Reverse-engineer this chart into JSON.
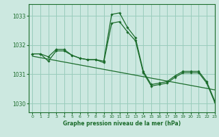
{
  "bg_color": "#cce8e0",
  "grid_color": "#99ccbb",
  "line_color": "#1a6b2a",
  "xlabel": "Graphe pression niveau de la mer (hPa)",
  "xlim": [
    -0.5,
    23
  ],
  "ylim": [
    1029.7,
    1033.4
  ],
  "yticks": [
    1030,
    1031,
    1032,
    1033
  ],
  "xticks": [
    0,
    1,
    2,
    3,
    4,
    5,
    6,
    7,
    8,
    9,
    10,
    11,
    12,
    13,
    14,
    15,
    16,
    17,
    18,
    19,
    20,
    21,
    22,
    23
  ],
  "series1": [
    1031.7,
    1031.7,
    1031.6,
    1031.85,
    1031.85,
    1031.65,
    1031.55,
    1031.5,
    1031.5,
    1031.45,
    1033.05,
    1033.1,
    1032.6,
    1032.25,
    1031.1,
    1030.65,
    1030.7,
    1030.75,
    1030.95,
    1031.1,
    1031.1,
    1031.1,
    1030.75,
    1030.1
  ],
  "series2": [
    1031.7,
    1031.7,
    1031.45,
    1031.8,
    1031.8,
    1031.65,
    1031.55,
    1031.5,
    1031.5,
    1031.4,
    1032.75,
    1032.8,
    1032.45,
    1032.15,
    1031.05,
    1030.6,
    1030.65,
    1030.7,
    1030.9,
    1031.05,
    1031.05,
    1031.05,
    1030.7,
    1030.05
  ],
  "trend": [
    1031.62,
    1031.57,
    1031.52,
    1031.47,
    1031.42,
    1031.37,
    1031.32,
    1031.27,
    1031.22,
    1031.17,
    1031.12,
    1031.07,
    1031.02,
    1030.97,
    1030.92,
    1030.87,
    1030.82,
    1030.77,
    1030.72,
    1030.67,
    1030.62,
    1030.57,
    1030.52,
    1030.47
  ]
}
